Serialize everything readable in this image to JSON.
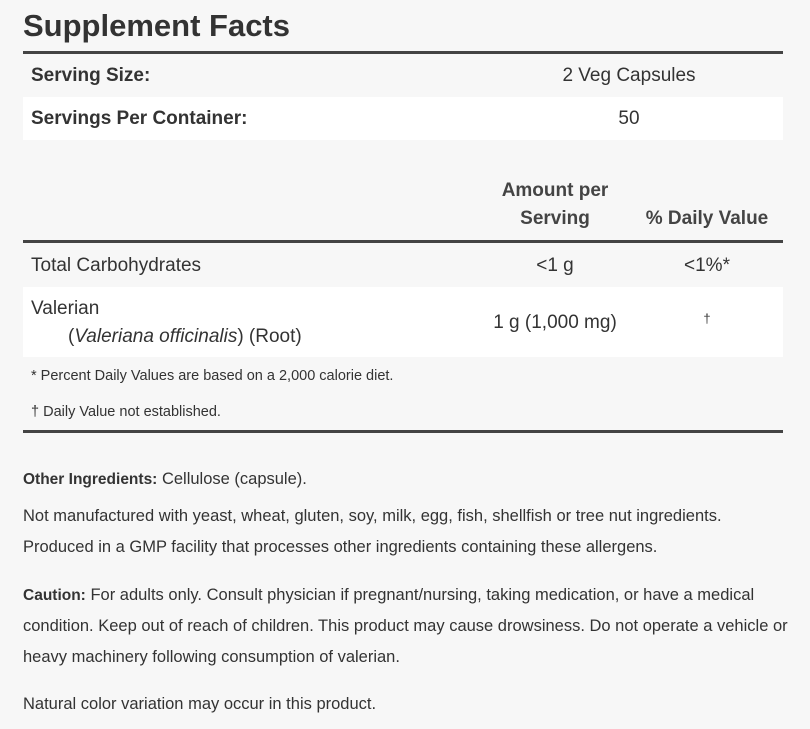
{
  "title": "Supplement Facts",
  "serving": {
    "rows": [
      [
        "Serving Size:",
        "2 Veg Capsules"
      ],
      [
        "Servings Per Container:",
        "50"
      ]
    ]
  },
  "table": {
    "header": [
      "Amount per",
      "Serving",
      "% Daily Value"
    ],
    "rows": [
      {
        "name": "Total Carbohydrates",
        "amount": "<1 g",
        "dv": "<1%*"
      },
      {
        "name": "Valerian",
        "sub": [
          "(",
          "Valeriana officinalis",
          ") (Root)"
        ],
        "amount": "1 g (1,000 mg)",
        "dv": "†"
      }
    ],
    "footnotes": [
      "* Percent Daily Values are based on a 2,000 calorie diet.",
      "† Daily Value not established."
    ]
  },
  "paragraphs": [
    {
      "label": "Other Ingredients:",
      "text": " Cellulose (capsule)."
    },
    {
      "text": "Not manufactured with yeast, wheat, gluten, soy, milk, egg, fish, shellfish or tree nut ingredients. Produced in a GMP facility that processes other ingredients containing these allergens."
    },
    {
      "label": "Caution:",
      "text": " For adults only. Consult physician if pregnant/nursing, taking medication, or have a medical condition. Keep out of reach of children. This product may cause drowsiness. Do not operate a vehicle or heavy machinery following consumption of valerian."
    },
    {
      "text": "Natural color variation may occur in this product."
    }
  ]
}
